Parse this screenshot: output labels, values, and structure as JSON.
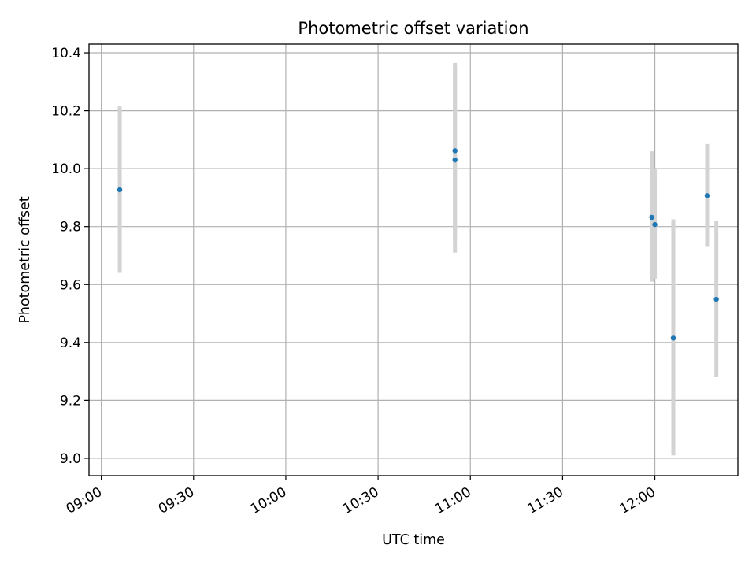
{
  "chart_data": {
    "type": "scatter",
    "title": "Photometric offset variation",
    "xlabel": "UTC time",
    "ylabel": "Photometric offset",
    "xlim": [
      "08:56",
      "12:27"
    ],
    "ylim": [
      8.94,
      10.43
    ],
    "x_ticks": [
      "09:00",
      "09:30",
      "10:00",
      "10:30",
      "11:00",
      "11:30",
      "12:00"
    ],
    "y_ticks": [
      9.0,
      9.2,
      9.4,
      9.6,
      9.8,
      10.0,
      10.2,
      10.4
    ],
    "grid": true,
    "colors": {
      "point": "#1f77b4",
      "errorbar": "#d3d3d3",
      "grid": "#b0b0b0"
    },
    "points": [
      {
        "time": "09:06",
        "value": 9.927,
        "low": 9.64,
        "high": 10.215
      },
      {
        "time": "10:55",
        "value": 10.062,
        "low": 9.76,
        "high": 10.365
      },
      {
        "time": "10:55",
        "value": 10.03,
        "low": 9.71,
        "high": 10.35
      },
      {
        "time": "11:59",
        "value": 9.832,
        "low": 9.61,
        "high": 10.06
      },
      {
        "time": "12:00",
        "value": 9.807,
        "low": 9.62,
        "high": 10.0
      },
      {
        "time": "12:06",
        "value": 9.415,
        "low": 9.01,
        "high": 9.825
      },
      {
        "time": "12:17",
        "value": 9.907,
        "low": 9.73,
        "high": 10.085
      },
      {
        "time": "12:20",
        "value": 9.549,
        "low": 9.28,
        "high": 9.82
      }
    ]
  }
}
